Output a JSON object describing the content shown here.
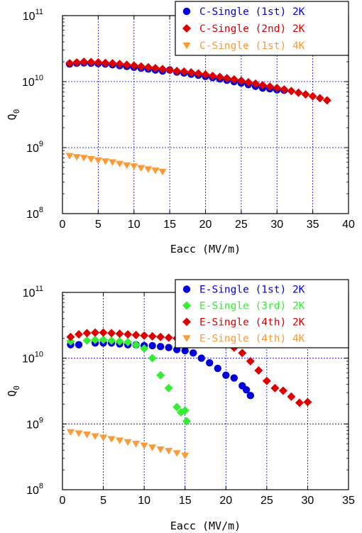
{
  "chart_data": [
    {
      "type": "scatter",
      "title": "",
      "xlabel": "Eacc (MV/m)",
      "ylabel": "Q_0",
      "xlim": [
        0,
        40
      ],
      "ylim": [
        100000000.0,
        100000000000.0
      ],
      "yscale": "log",
      "xticks": [
        0,
        5,
        10,
        15,
        20,
        25,
        30,
        35,
        40
      ],
      "yticks": [
        {
          "base": "10",
          "exp": "8"
        },
        {
          "base": "10",
          "exp": "9"
        },
        {
          "base": "10",
          "exp": "10"
        },
        {
          "base": "10",
          "exp": "11"
        }
      ],
      "grid": true,
      "legend_position": "top-right",
      "series": [
        {
          "name": "C-Single (1st) 2K",
          "color": "#0000dd",
          "marker": "circle",
          "points": [
            [
              1,
              18500000000.0
            ],
            [
              2,
              19000000000.0
            ],
            [
              3,
              19200000000.0
            ],
            [
              4,
              19000000000.0
            ],
            [
              5,
              18800000000.0
            ],
            [
              6,
              18500000000.0
            ],
            [
              7,
              18000000000.0
            ],
            [
              8,
              17500000000.0
            ],
            [
              9,
              17000000000.0
            ],
            [
              10,
              16500000000.0
            ],
            [
              11,
              16000000000.0
            ],
            [
              12,
              15500000000.0
            ],
            [
              13,
              15000000000.0
            ],
            [
              14,
              14500000000.0
            ],
            [
              15,
              15000000000.0
            ],
            [
              16,
              14000000000.0
            ],
            [
              17,
              13500000000.0
            ],
            [
              18,
              13000000000.0
            ],
            [
              19,
              12500000000.0
            ],
            [
              20,
              12000000000.0
            ],
            [
              21,
              11500000000.0
            ],
            [
              22,
              11000000000.0
            ],
            [
              23,
              10500000000.0
            ],
            [
              24,
              10000000000.0
            ],
            [
              25,
              9500000000.0
            ],
            [
              26,
              9000000000.0
            ],
            [
              27,
              8500000000.0
            ],
            [
              28,
              8000000000.0
            ],
            [
              29,
              7800000000.0
            ],
            [
              30,
              7500000000.0
            ],
            [
              31,
              7400000000.0
            ]
          ]
        },
        {
          "name": "C-Single (2nd) 2K",
          "color": "#dd0000",
          "marker": "diamond",
          "points": [
            [
              1,
              19000000000.0
            ],
            [
              2,
              19500000000.0
            ],
            [
              3,
              20000000000.0
            ],
            [
              4,
              19800000000.0
            ],
            [
              5,
              19500000000.0
            ],
            [
              6,
              19200000000.0
            ],
            [
              7,
              19000000000.0
            ],
            [
              8,
              18500000000.0
            ],
            [
              9,
              18000000000.0
            ],
            [
              10,
              17500000000.0
            ],
            [
              11,
              17000000000.0
            ],
            [
              12,
              16500000000.0
            ],
            [
              13,
              16000000000.0
            ],
            [
              14,
              15500000000.0
            ],
            [
              15,
              15000000000.0
            ],
            [
              16,
              14500000000.0
            ],
            [
              17,
              14200000000.0
            ],
            [
              18,
              13800000000.0
            ],
            [
              19,
              13300000000.0
            ],
            [
              20,
              12800000000.0
            ],
            [
              21,
              12200000000.0
            ],
            [
              22,
              11800000000.0
            ],
            [
              23,
              11300000000.0
            ],
            [
              24,
              10800000000.0
            ],
            [
              25,
              10300000000.0
            ],
            [
              26,
              9800000000.0
            ],
            [
              27,
              9300000000.0
            ],
            [
              28,
              8800000000.0
            ],
            [
              29,
              8400000000.0
            ],
            [
              30,
              8000000000.0
            ],
            [
              31,
              7600000000.0
            ],
            [
              32,
              7200000000.0
            ],
            [
              33,
              6800000000.0
            ],
            [
              34,
              6400000000.0
            ],
            [
              35,
              6000000000.0
            ],
            [
              36,
              5600000000.0
            ],
            [
              37,
              5200000000.0
            ]
          ]
        },
        {
          "name": "C-Single (1st) 4K",
          "color": "#ff9933",
          "marker": "triangle-down",
          "points": [
            [
              1,
              750000000.0
            ],
            [
              2,
              720000000.0
            ],
            [
              3,
              700000000.0
            ],
            [
              4,
              670000000.0
            ],
            [
              5,
              640000000.0
            ],
            [
              6,
              620000000.0
            ],
            [
              7,
              600000000.0
            ],
            [
              8,
              570000000.0
            ],
            [
              9,
              540000000.0
            ],
            [
              10,
              520000000.0
            ],
            [
              11,
              490000000.0
            ],
            [
              12,
              470000000.0
            ],
            [
              13,
              450000000.0
            ],
            [
              14,
              430000000.0
            ]
          ]
        }
      ]
    },
    {
      "type": "scatter",
      "title": "",
      "xlabel": "Eacc (MV/m)",
      "ylabel": "Q_0",
      "xlim": [
        0,
        35
      ],
      "ylim": [
        100000000.0,
        100000000000.0
      ],
      "yscale": "log",
      "xticks": [
        0,
        5,
        10,
        15,
        20,
        25,
        30,
        35
      ],
      "yticks": [
        {
          "base": "10",
          "exp": "8"
        },
        {
          "base": "10",
          "exp": "9"
        },
        {
          "base": "10",
          "exp": "10"
        },
        {
          "base": "10",
          "exp": "11"
        }
      ],
      "grid": true,
      "legend_position": "top-right",
      "series": [
        {
          "name": "E-Single (1st) 2K",
          "color": "#0000dd",
          "marker": "circle",
          "points": [
            [
              1,
              16000000000.0
            ],
            [
              2,
              16000000000.0
            ],
            [
              4,
              17000000000.0
            ],
            [
              5,
              17000000000.0
            ],
            [
              6,
              17000000000.0
            ],
            [
              7,
              16500000000.0
            ],
            [
              8,
              16000000000.0
            ],
            [
              9,
              16000000000.0
            ],
            [
              10,
              15500000000.0
            ],
            [
              11,
              15500000000.0
            ],
            [
              12,
              15000000000.0
            ],
            [
              13,
              14500000000.0
            ],
            [
              14,
              13500000000.0
            ],
            [
              15,
              13000000000.0
            ],
            [
              16,
              12000000000.0
            ],
            [
              17,
              10000000000.0
            ],
            [
              18,
              8500000000.0
            ],
            [
              19,
              7000000000.0
            ],
            [
              20,
              5500000000.0
            ],
            [
              21,
              5000000000.0
            ],
            [
              22,
              3800000000.0
            ],
            [
              22.5,
              3300000000.0
            ],
            [
              23,
              2700000000.0
            ]
          ]
        },
        {
          "name": "E-Single (3rd) 2K",
          "color": "#33ee33",
          "marker": "diamond",
          "points": [
            [
              1,
              18000000000.0
            ],
            [
              3,
              18500000000.0
            ],
            [
              4,
              19000000000.0
            ],
            [
              5,
              19000000000.0
            ],
            [
              6,
              18500000000.0
            ],
            [
              7,
              18000000000.0
            ],
            [
              8,
              17500000000.0
            ],
            [
              9,
              16000000000.0
            ],
            [
              10,
              14000000000.0
            ],
            [
              11,
              10000000000.0
            ],
            [
              12,
              5500000000.0
            ],
            [
              13,
              3500000000.0
            ],
            [
              14,
              1800000000.0
            ],
            [
              14.5,
              1500000000.0
            ],
            [
              15,
              1600000000.0
            ],
            [
              15.2,
              1100000000.0
            ]
          ]
        },
        {
          "name": "E-Single (4th) 2K",
          "color": "#dd0000",
          "marker": "diamond",
          "points": [
            [
              1,
              21000000000.0
            ],
            [
              2,
              23000000000.0
            ],
            [
              3,
              24000000000.0
            ],
            [
              4,
              24500000000.0
            ],
            [
              5,
              24500000000.0
            ],
            [
              6,
              24000000000.0
            ],
            [
              7,
              23500000000.0
            ],
            [
              8,
              23000000000.0
            ],
            [
              9,
              22500000000.0
            ],
            [
              10,
              22000000000.0
            ],
            [
              11,
              21500000000.0
            ],
            [
              12,
              21000000000.0
            ],
            [
              13,
              20500000000.0
            ],
            [
              14,
              20000000000.0
            ],
            [
              15,
              19500000000.0
            ],
            [
              16,
              19000000000.0
            ],
            [
              17,
              18500000000.0
            ],
            [
              18,
              18000000000.0
            ],
            [
              19,
              17000000000.0
            ],
            [
              20,
              16000000000.0
            ],
            [
              21,
              14500000000.0
            ],
            [
              22,
              12000000000.0
            ],
            [
              23,
              9000000000.0
            ],
            [
              24,
              6500000000.0
            ],
            [
              25,
              4500000000.0
            ],
            [
              26,
              3500000000.0
            ],
            [
              27,
              3200000000.0
            ],
            [
              28,
              2600000000.0
            ],
            [
              29,
              2100000000.0
            ],
            [
              30,
              2150000000.0
            ]
          ]
        },
        {
          "name": "E-Single (4th) 4K",
          "color": "#ff9933",
          "marker": "triangle-down",
          "points": [
            [
              1,
              750000000.0
            ],
            [
              2,
              720000000.0
            ],
            [
              3,
              690000000.0
            ],
            [
              4,
              650000000.0
            ],
            [
              5,
              620000000.0
            ],
            [
              6,
              590000000.0
            ],
            [
              7,
              560000000.0
            ],
            [
              8,
              530000000.0
            ],
            [
              9,
              500000000.0
            ],
            [
              10,
              470000000.0
            ],
            [
              11,
              440000000.0
            ],
            [
              12,
              410000000.0
            ],
            [
              13,
              390000000.0
            ],
            [
              14,
              360000000.0
            ],
            [
              15,
              330000000.0
            ]
          ]
        }
      ]
    }
  ]
}
